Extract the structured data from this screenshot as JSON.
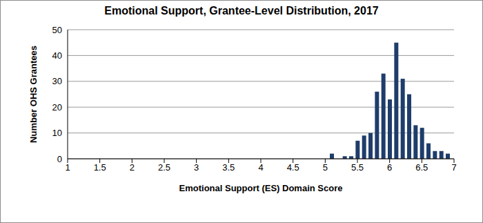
{
  "chart_data": {
    "type": "bar",
    "title": "Emotional Support, Grantee-Level Distribution, 2017",
    "x_label": "Emotional Support (ES) Domain Score",
    "y_label": "Number OHS Grantees",
    "x": [
      5.1,
      5.2,
      5.3,
      5.4,
      5.5,
      5.6,
      5.7,
      5.8,
      5.9,
      6.0,
      6.1,
      6.2,
      6.3,
      6.4,
      6.5,
      6.6,
      6.7,
      6.8,
      6.9
    ],
    "values": [
      2,
      0,
      1,
      1,
      7,
      9,
      10,
      26,
      33,
      23,
      45,
      31,
      25,
      13,
      12,
      6,
      3,
      3,
      2
    ],
    "color": "#1f3d6b",
    "xlim": [
      1,
      7
    ],
    "xticks": [
      1,
      1.5,
      2,
      2.5,
      3,
      3.5,
      4,
      4.5,
      5,
      5.5,
      6,
      6.5,
      7
    ],
    "ylim": [
      0,
      50
    ],
    "yticks": [
      0,
      10,
      20,
      30,
      40,
      50
    ],
    "grid": true
  }
}
